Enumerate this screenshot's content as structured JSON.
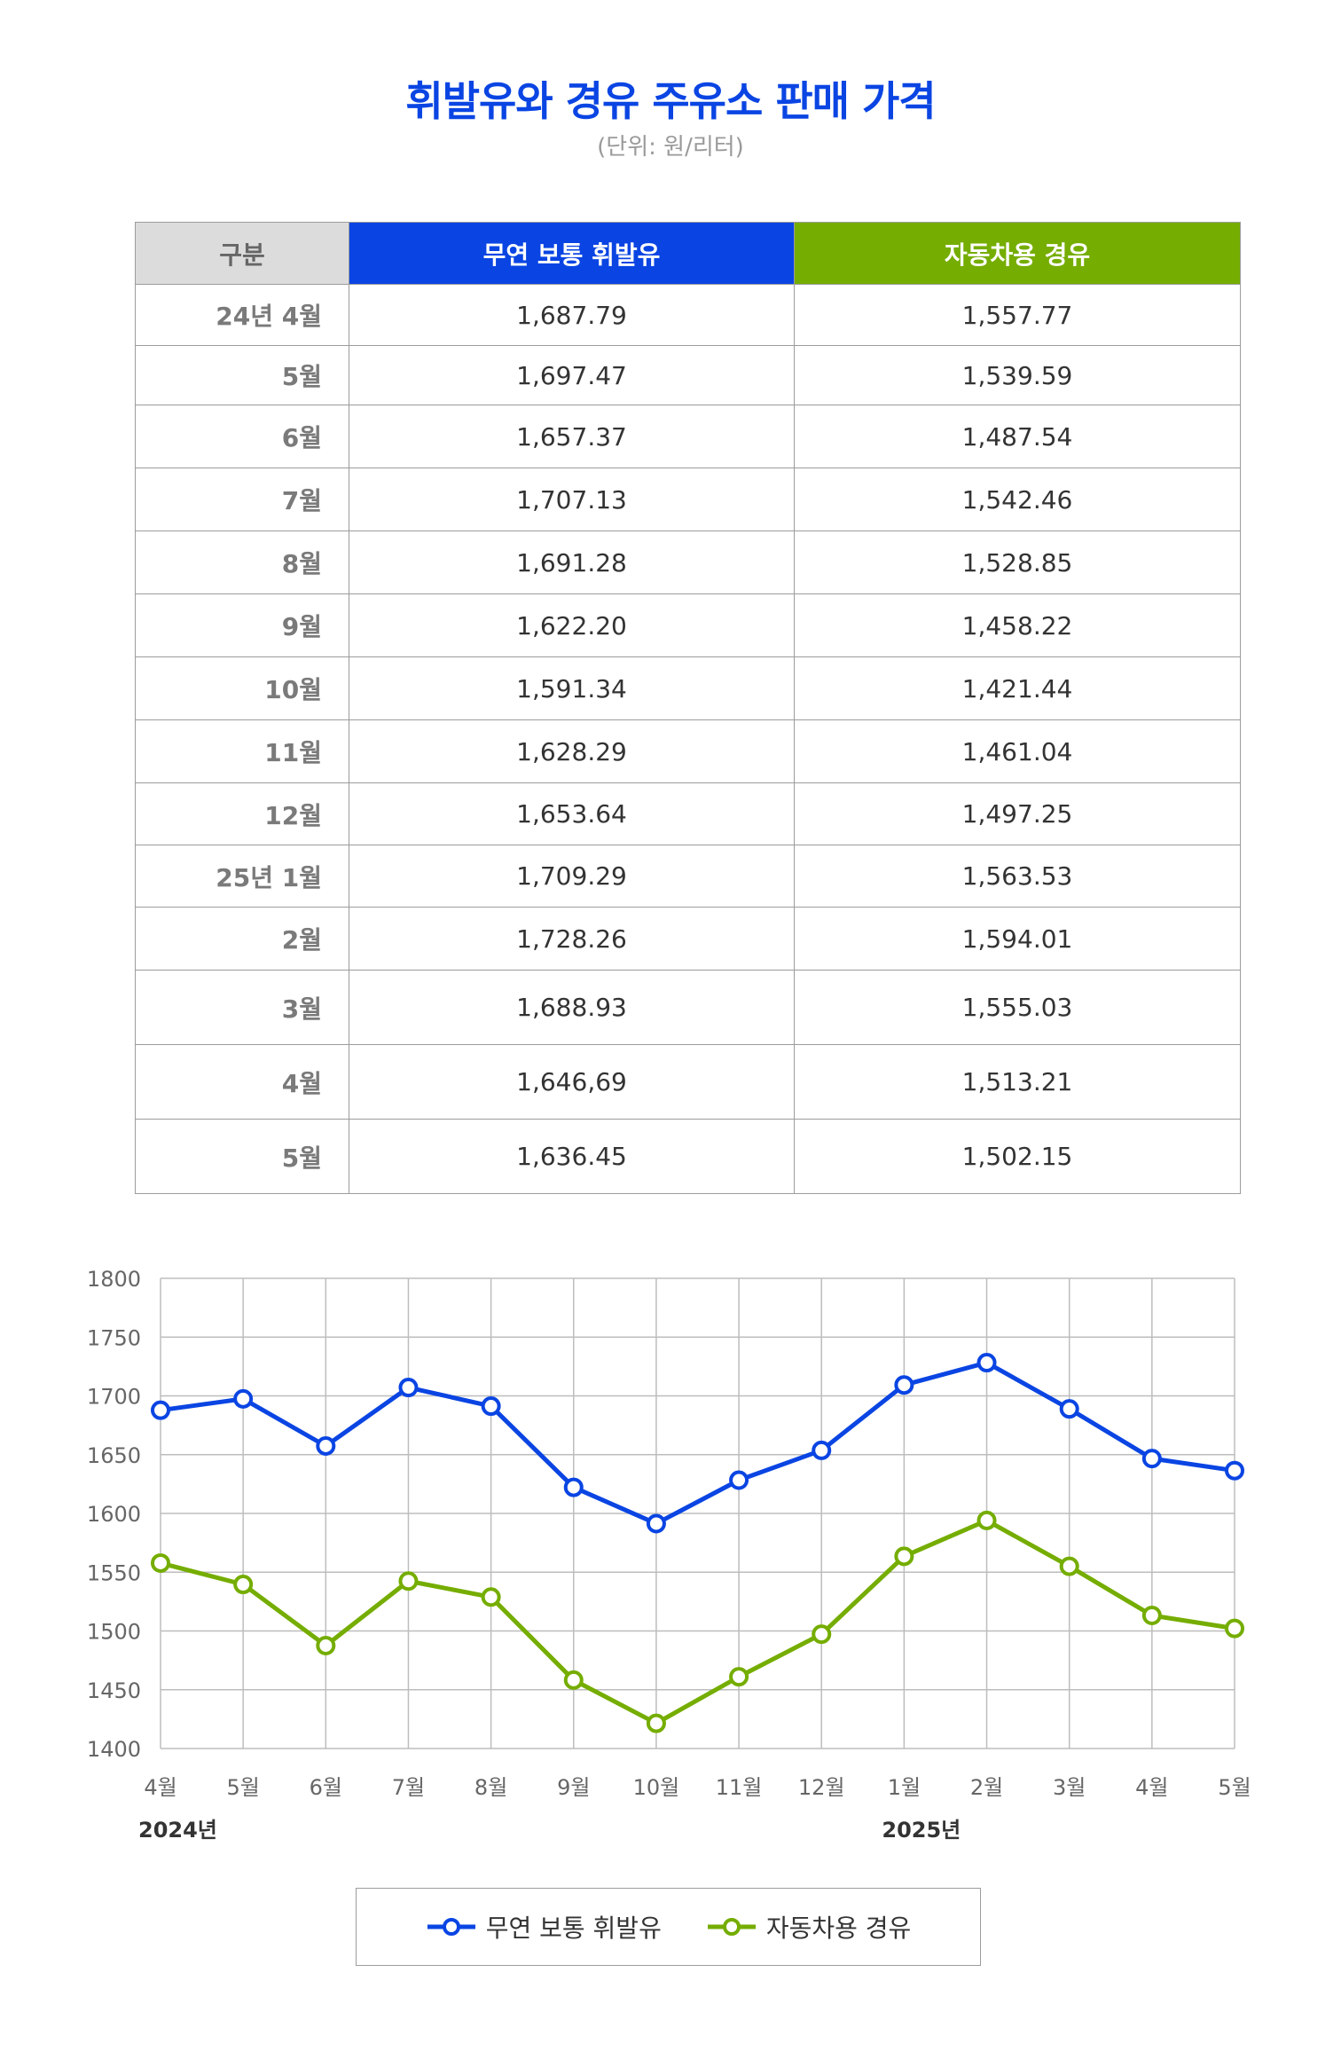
{
  "header": {
    "title": "휘발유와 경유 주유소 판매 가격",
    "subtitle": "(단위: 원/리터)"
  },
  "table": {
    "columns": [
      "구분",
      "무연 보통 휘발유",
      "자동차용 경유"
    ],
    "rows": [
      [
        "24년 4월",
        "1,687.79",
        "1,557.77"
      ],
      [
        "5월",
        "1,697.47",
        "1,539.59"
      ],
      [
        "6월",
        "1,657.37",
        "1,487.54"
      ],
      [
        "7월",
        "1,707.13",
        "1,542.46"
      ],
      [
        "8월",
        "1,691.28",
        "1,528.85"
      ],
      [
        "9월",
        "1,622.20",
        "1,458.22"
      ],
      [
        "10월",
        "1,591.34",
        "1,421.44"
      ],
      [
        "11월",
        "1,628.29",
        "1,461.04"
      ],
      [
        "12월",
        "1,653.64",
        "1,497.25"
      ],
      [
        "25년 1월",
        "1,709.29",
        "1,563.53"
      ],
      [
        "2월",
        "1,728.26",
        "1,594.01"
      ],
      [
        "3월",
        "1,688.93",
        "1,555.03"
      ],
      [
        "4월",
        "1,646,69",
        "1,513.21"
      ],
      [
        "5월",
        "1,636.45",
        "1,502.15"
      ]
    ]
  },
  "colors": {
    "gasoline": "#0a45e3",
    "diesel": "#75ad00",
    "header_gray": "#dcdcdc",
    "title": "#0a45e3"
  },
  "chart_data": {
    "type": "line",
    "categories": [
      "4월",
      "5월",
      "6월",
      "7월",
      "8월",
      "9월",
      "10월",
      "11월",
      "12월",
      "1월",
      "2월",
      "3월",
      "4월",
      "5월"
    ],
    "year_labels": [
      {
        "index": 0,
        "label": "2024년"
      },
      {
        "index": 9,
        "label": "2025년"
      }
    ],
    "series": [
      {
        "name": "무연 보통 휘발유",
        "color": "#0a45e3",
        "values": [
          1687.79,
          1697.47,
          1657.37,
          1707.13,
          1691.28,
          1622.2,
          1591.34,
          1628.29,
          1653.64,
          1709.29,
          1728.26,
          1688.93,
          1646.69,
          1636.45
        ]
      },
      {
        "name": "자동차용 경유",
        "color": "#75ad00",
        "values": [
          1557.77,
          1539.59,
          1487.54,
          1542.46,
          1528.85,
          1458.22,
          1421.44,
          1461.04,
          1497.25,
          1563.53,
          1594.01,
          1555.03,
          1513.21,
          1502.15
        ]
      }
    ],
    "yticks": [
      1400,
      1450,
      1500,
      1550,
      1600,
      1650,
      1700,
      1750,
      1800
    ],
    "ylim": [
      1400,
      1800
    ],
    "grid": true,
    "legend_position": "bottom"
  }
}
